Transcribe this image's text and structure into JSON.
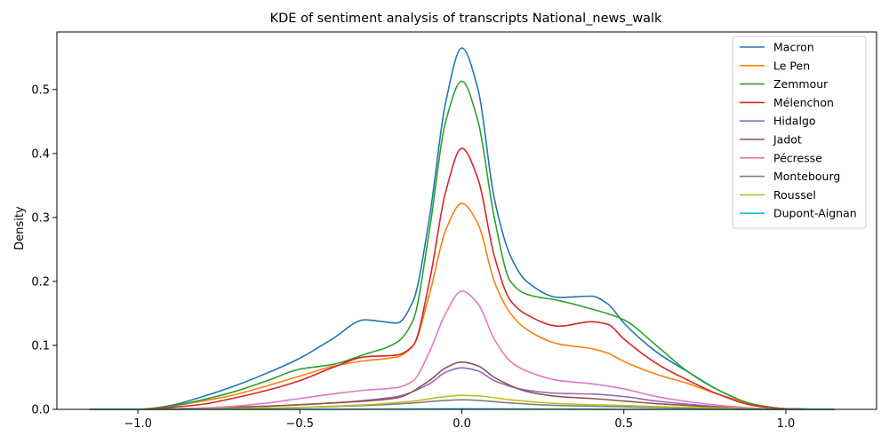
{
  "chart_data": {
    "type": "line",
    "title": "KDE of sentiment analysis of transcripts National_news_walk",
    "xlabel": "",
    "ylabel": "Density",
    "xlim": [
      -1.25,
      1.28
    ],
    "ylim": [
      0,
      0.59
    ],
    "xticks": [
      -1.0,
      -0.5,
      0.0,
      0.5,
      1.0
    ],
    "xtick_labels": [
      "−1.0",
      "−0.5",
      "0.0",
      "0.5",
      "1.0"
    ],
    "yticks": [
      0.0,
      0.1,
      0.2,
      0.3,
      0.4,
      0.5
    ],
    "ytick_labels": [
      "0.0",
      "0.1",
      "0.2",
      "0.3",
      "0.4",
      "0.5"
    ],
    "grid": false,
    "legend_position": "top-right",
    "series": [
      {
        "name": "Macron",
        "color": "#1f77b4",
        "x": [
          -1.15,
          -1.0,
          -0.9,
          -0.8,
          -0.7,
          -0.6,
          -0.5,
          -0.4,
          -0.3,
          -0.2,
          -0.15,
          -0.1,
          -0.05,
          0.0,
          0.05,
          0.1,
          0.15,
          0.2,
          0.3,
          0.4,
          0.45,
          0.5,
          0.6,
          0.7,
          0.8,
          0.9,
          1.0,
          1.15
        ],
        "y": [
          0.0,
          0.0,
          0.006,
          0.02,
          0.037,
          0.057,
          0.08,
          0.11,
          0.14,
          0.135,
          0.17,
          0.3,
          0.48,
          0.565,
          0.5,
          0.33,
          0.24,
          0.2,
          0.175,
          0.177,
          0.165,
          0.135,
          0.09,
          0.058,
          0.028,
          0.008,
          0.001,
          0.0
        ]
      },
      {
        "name": "Le Pen",
        "color": "#ff7f0e",
        "x": [
          -1.15,
          -1.0,
          -0.9,
          -0.8,
          -0.7,
          -0.6,
          -0.5,
          -0.4,
          -0.3,
          -0.2,
          -0.15,
          -0.1,
          -0.05,
          0.0,
          0.05,
          0.1,
          0.15,
          0.2,
          0.3,
          0.4,
          0.45,
          0.5,
          0.6,
          0.7,
          0.8,
          0.9,
          1.0,
          1.15
        ],
        "y": [
          0.0,
          0.0,
          0.005,
          0.013,
          0.023,
          0.037,
          0.052,
          0.067,
          0.076,
          0.082,
          0.1,
          0.18,
          0.28,
          0.322,
          0.29,
          0.2,
          0.15,
          0.125,
          0.102,
          0.095,
          0.088,
          0.075,
          0.055,
          0.04,
          0.022,
          0.008,
          0.001,
          0.0
        ]
      },
      {
        "name": "Zemmour",
        "color": "#2ca02c",
        "x": [
          -1.15,
          -1.0,
          -0.9,
          -0.8,
          -0.7,
          -0.6,
          -0.5,
          -0.4,
          -0.3,
          -0.2,
          -0.15,
          -0.1,
          -0.05,
          0.0,
          0.05,
          0.1,
          0.15,
          0.2,
          0.3,
          0.4,
          0.5,
          0.6,
          0.7,
          0.8,
          0.9,
          1.0,
          1.15
        ],
        "y": [
          0.0,
          0.0,
          0.005,
          0.015,
          0.028,
          0.045,
          0.063,
          0.07,
          0.086,
          0.105,
          0.14,
          0.28,
          0.45,
          0.513,
          0.45,
          0.3,
          0.2,
          0.18,
          0.17,
          0.157,
          0.14,
          0.1,
          0.058,
          0.028,
          0.008,
          0.001,
          0.0
        ]
      },
      {
        "name": "Mélenchon",
        "color": "#d62728",
        "x": [
          -1.15,
          -1.0,
          -0.9,
          -0.8,
          -0.7,
          -0.6,
          -0.5,
          -0.4,
          -0.3,
          -0.2,
          -0.15,
          -0.1,
          -0.05,
          0.0,
          0.05,
          0.1,
          0.15,
          0.2,
          0.3,
          0.4,
          0.45,
          0.5,
          0.6,
          0.7,
          0.8,
          0.9,
          1.0,
          1.15
        ],
        "y": [
          0.0,
          0.0,
          0.003,
          0.008,
          0.018,
          0.03,
          0.045,
          0.065,
          0.082,
          0.085,
          0.1,
          0.2,
          0.34,
          0.408,
          0.36,
          0.24,
          0.17,
          0.148,
          0.13,
          0.137,
          0.133,
          0.11,
          0.072,
          0.045,
          0.022,
          0.006,
          0.001,
          0.0
        ]
      },
      {
        "name": "Hidalgo",
        "color": "#9467bd",
        "x": [
          -1.15,
          -1.0,
          -0.8,
          -0.6,
          -0.4,
          -0.3,
          -0.2,
          -0.1,
          -0.05,
          0.0,
          0.05,
          0.1,
          0.2,
          0.3,
          0.4,
          0.5,
          0.6,
          0.7,
          0.8,
          0.9,
          1.0,
          1.15
        ],
        "y": [
          0.0,
          0.0,
          0.002,
          0.005,
          0.01,
          0.014,
          0.02,
          0.04,
          0.058,
          0.065,
          0.06,
          0.045,
          0.03,
          0.025,
          0.024,
          0.02,
          0.013,
          0.008,
          0.004,
          0.001,
          0.0,
          0.0
        ]
      },
      {
        "name": "Jadot",
        "color": "#8c564b",
        "x": [
          -1.15,
          -1.0,
          -0.8,
          -0.6,
          -0.4,
          -0.3,
          -0.2,
          -0.1,
          -0.05,
          0.0,
          0.05,
          0.1,
          0.2,
          0.3,
          0.4,
          0.5,
          0.6,
          0.7,
          0.8,
          0.9,
          1.0,
          1.15
        ],
        "y": [
          0.0,
          0.0,
          0.002,
          0.005,
          0.01,
          0.013,
          0.018,
          0.045,
          0.065,
          0.074,
          0.068,
          0.05,
          0.028,
          0.02,
          0.017,
          0.013,
          0.009,
          0.006,
          0.003,
          0.001,
          0.0,
          0.0
        ]
      },
      {
        "name": "Pécresse",
        "color": "#e377c2",
        "x": [
          -1.15,
          -1.0,
          -0.8,
          -0.7,
          -0.6,
          -0.5,
          -0.4,
          -0.3,
          -0.2,
          -0.15,
          -0.1,
          -0.05,
          0.0,
          0.05,
          0.1,
          0.15,
          0.2,
          0.3,
          0.4,
          0.5,
          0.6,
          0.7,
          0.8,
          0.9,
          1.0,
          1.15
        ],
        "y": [
          0.0,
          0.0,
          0.002,
          0.005,
          0.01,
          0.017,
          0.024,
          0.03,
          0.034,
          0.045,
          0.09,
          0.15,
          0.185,
          0.165,
          0.11,
          0.075,
          0.06,
          0.045,
          0.04,
          0.032,
          0.02,
          0.012,
          0.006,
          0.002,
          0.0,
          0.0
        ]
      },
      {
        "name": "Montebourg",
        "color": "#7f7f7f",
        "x": [
          -1.15,
          -1.0,
          -0.6,
          -0.3,
          -0.15,
          -0.05,
          0.0,
          0.05,
          0.15,
          0.3,
          0.5,
          0.7,
          0.9,
          1.0,
          1.15
        ],
        "y": [
          0.0,
          0.0,
          0.002,
          0.006,
          0.01,
          0.014,
          0.015,
          0.014,
          0.01,
          0.006,
          0.004,
          0.002,
          0.0,
          0.0,
          0.0
        ]
      },
      {
        "name": "Roussel",
        "color": "#bcbd22",
        "x": [
          -1.15,
          -1.0,
          -0.6,
          -0.3,
          -0.15,
          -0.05,
          0.0,
          0.05,
          0.15,
          0.3,
          0.5,
          0.7,
          0.9,
          1.0,
          1.15
        ],
        "y": [
          0.0,
          0.0,
          0.002,
          0.007,
          0.013,
          0.02,
          0.022,
          0.021,
          0.015,
          0.009,
          0.006,
          0.003,
          0.001,
          0.0,
          0.0
        ]
      },
      {
        "name": "Dupont-Aignan",
        "color": "#17becf",
        "x": [
          -1.15,
          -0.5,
          0.0,
          0.5,
          1.15
        ],
        "y": [
          0.0,
          0.0,
          0.001,
          0.0,
          0.0
        ]
      }
    ]
  }
}
